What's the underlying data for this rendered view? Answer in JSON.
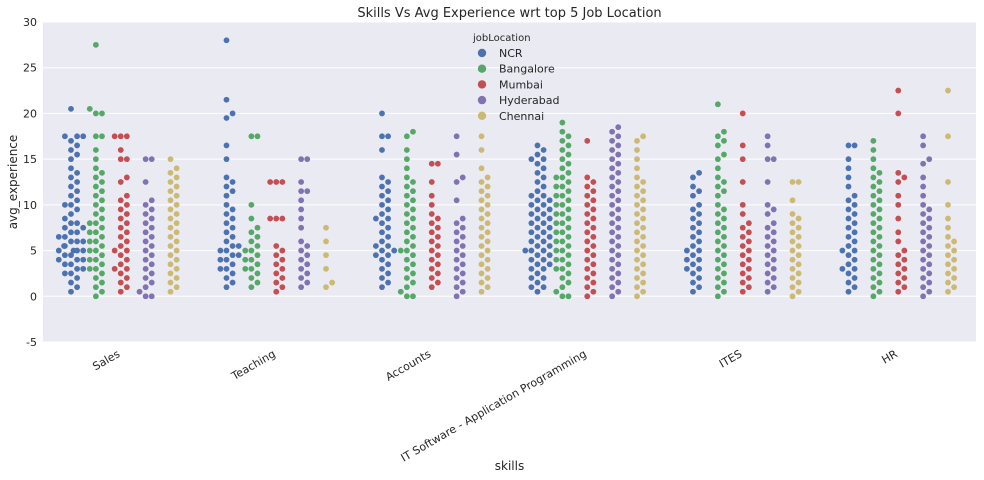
{
  "chart_data": {
    "type": "scatter",
    "subtype": "swarm",
    "title": "Skills Vs Avg Experience wrt top 5 Job Location",
    "xlabel": "skills",
    "ylabel": "avg_experience",
    "ylim": [
      -5,
      30
    ],
    "yticks": [
      -5,
      0,
      5,
      10,
      15,
      20,
      25,
      30
    ],
    "grid": true,
    "categories": [
      "Sales",
      "Teaching",
      "Accounts",
      "IT Software - Application Programming",
      "ITES",
      "HR"
    ],
    "legend": {
      "title": "jobLocation",
      "placement": "top-center",
      "entries": [
        "NCR",
        "Bangalore",
        "Mumbai",
        "Hyderabad",
        "Chennai"
      ]
    },
    "colors": {
      "NCR": "#4c72b0",
      "Bangalore": "#55a868",
      "Mumbai": "#c44e52",
      "Hyderabad": "#8172b2",
      "Chennai": "#ccb974"
    },
    "series": [
      {
        "name": "NCR",
        "color": "#4c72b0",
        "values": [
          [
            0.5,
            1,
            1.5,
            2,
            2.5,
            2.5,
            3,
            3,
            3.5,
            3.5,
            4,
            4,
            4,
            4.5,
            4.5,
            5,
            5,
            5,
            5,
            5.5,
            5.5,
            6,
            6,
            6,
            6.5,
            6.5,
            7,
            7,
            7.5,
            7.5,
            8,
            8,
            8.5,
            9,
            9.5,
            10,
            10,
            10.5,
            11,
            11.5,
            12,
            12.5,
            13,
            13.5,
            14,
            15,
            15.5,
            16,
            16.5,
            17,
            17.5,
            17.5,
            17.5,
            20.5
          ],
          [
            1,
            1.5,
            2,
            2.5,
            3,
            3,
            3.5,
            4,
            4,
            4.5,
            4.5,
            5,
            5,
            5.5,
            5.5,
            6,
            6.5,
            7,
            7.5,
            8,
            8.5,
            9,
            9.5,
            10,
            11,
            11.5,
            12,
            12.5,
            13,
            15,
            16.5,
            19.5,
            20,
            21.5,
            28
          ],
          [
            1,
            1.5,
            2,
            2.5,
            3,
            3.5,
            4,
            4.5,
            4.5,
            5,
            5,
            5.5,
            5.5,
            6,
            6.5,
            7,
            7.5,
            8,
            8.5,
            8.5,
            9,
            9.5,
            10,
            10.5,
            11,
            11.5,
            12,
            12.5,
            13,
            16,
            17.5,
            17.5,
            20
          ],
          [
            0.5,
            1,
            1,
            1.5,
            2,
            2,
            2.5,
            3,
            3,
            3.5,
            3.5,
            4,
            4,
            4.5,
            4.5,
            5,
            5,
            5,
            5.5,
            5.5,
            6,
            6,
            6.5,
            6.5,
            7,
            7,
            7.5,
            7.5,
            8,
            8,
            8.5,
            8.5,
            9,
            9,
            9.5,
            9.5,
            10,
            10,
            10.5,
            10.5,
            11,
            11,
            11.5,
            12,
            12.5,
            13,
            13.5,
            14,
            14.5,
            15,
            15,
            15.5,
            16,
            16.5
          ],
          [
            0.5,
            1,
            1.5,
            2,
            2.5,
            3,
            3,
            3.5,
            4,
            4,
            4.5,
            5,
            5,
            5.5,
            6,
            6.5,
            7,
            7.5,
            8,
            8.5,
            9,
            9.5,
            10,
            11,
            11.5,
            12,
            13,
            13.5
          ],
          [
            0.5,
            1,
            1.5,
            2,
            2.5,
            3,
            3,
            3.5,
            4,
            4.5,
            5,
            5,
            5.5,
            6,
            6.5,
            7,
            7.5,
            8,
            8.5,
            9,
            9.5,
            10,
            10.5,
            11,
            12,
            13,
            14,
            15,
            16.5,
            16.5
          ]
        ]
      },
      {
        "name": "Bangalore",
        "color": "#55a868",
        "values": [
          [
            0,
            0.5,
            1,
            1.5,
            2,
            2.5,
            3,
            3,
            3.5,
            4,
            4,
            4.5,
            5,
            5,
            5.5,
            6,
            6,
            6.5,
            7,
            7,
            7.5,
            8,
            8,
            8.5,
            9,
            9.5,
            10,
            10.5,
            11,
            11.5,
            12,
            12.5,
            13,
            13.5,
            14,
            15,
            16,
            17.5,
            17.5,
            20,
            20,
            20.5,
            27.5
          ],
          [
            1,
            1.5,
            2,
            2.5,
            3,
            3,
            3.5,
            4,
            4,
            4.5,
            5,
            5,
            5.5,
            6,
            6.5,
            7,
            7.5,
            8.5,
            10,
            17.5,
            17.5
          ],
          [
            0,
            0,
            0.5,
            1,
            1.5,
            2,
            2.5,
            3,
            3.5,
            4,
            4.5,
            5,
            5,
            5.5,
            6,
            6.5,
            7,
            7.5,
            8,
            8.5,
            9,
            9.5,
            10,
            10.5,
            11,
            11.5,
            12,
            12.5,
            13,
            14,
            15,
            16,
            17.5,
            18
          ],
          [
            0,
            0,
            0.5,
            1,
            1.5,
            2,
            2.5,
            3,
            3,
            3.5,
            4,
            4,
            4.5,
            5,
            5,
            5.5,
            6,
            6,
            6.5,
            7,
            7,
            7.5,
            8,
            8,
            8.5,
            9,
            9,
            9.5,
            10,
            10,
            10.5,
            11,
            11,
            11.5,
            12,
            12,
            12.5,
            13,
            13,
            13.5,
            14,
            14.5,
            15,
            15.5,
            16,
            16.5,
            17,
            17.5,
            18,
            19
          ],
          [
            0,
            0.5,
            1,
            1.5,
            2,
            2.5,
            3,
            3.5,
            4,
            4.5,
            5,
            5.5,
            6,
            6.5,
            7,
            7.5,
            8,
            8.5,
            9,
            9.5,
            10,
            11,
            11.5,
            12,
            12.5,
            13,
            14,
            15,
            15.5,
            16.5,
            17,
            17.5,
            18,
            21
          ],
          [
            0,
            0.5,
            1,
            1.5,
            2,
            2.5,
            3,
            3.5,
            4,
            4.5,
            5,
            5.5,
            6,
            6.5,
            7,
            7.5,
            8,
            8.5,
            9,
            9.5,
            10,
            10.5,
            11,
            11.5,
            12,
            12.5,
            13,
            13.5,
            14,
            15,
            16,
            17
          ]
        ]
      },
      {
        "name": "Mumbai",
        "color": "#c44e52",
        "values": [
          [
            0.5,
            1,
            1.5,
            2,
            2.5,
            3,
            3,
            3.5,
            4,
            4.5,
            5,
            5,
            5.5,
            6,
            6.5,
            7,
            7.5,
            8,
            8.5,
            9,
            9.5,
            10,
            10.5,
            11,
            12.5,
            13,
            15,
            15,
            16,
            17.5,
            17.5,
            17.5
          ],
          [
            0.5,
            1,
            1.5,
            2,
            2.5,
            3,
            3.5,
            4,
            4.5,
            5,
            5.5,
            8.5,
            8.5,
            8.5,
            12.5,
            12.5,
            12.5
          ],
          [
            1,
            1.5,
            2,
            2.5,
            3,
            3.5,
            4,
            4.5,
            5,
            5.5,
            6,
            6.5,
            7,
            7.5,
            8,
            8.5,
            9,
            10,
            11,
            12.5,
            14.5,
            14.5
          ],
          [
            0,
            0.5,
            1,
            1.5,
            2,
            2.5,
            3,
            3.5,
            4,
            4.5,
            5,
            5.5,
            6,
            6.5,
            7,
            7.5,
            8,
            8.5,
            9,
            9.5,
            10,
            10.5,
            11,
            11.5,
            12,
            12.5,
            13,
            17
          ],
          [
            0.5,
            1,
            1.5,
            2,
            2.5,
            3,
            3.5,
            4,
            4.5,
            5,
            5.5,
            6,
            6.5,
            7,
            7.5,
            8,
            9,
            10,
            12.5,
            15,
            16.5,
            20
          ],
          [
            0.5,
            1,
            1.5,
            2,
            2.5,
            3,
            3.5,
            4,
            4.5,
            5,
            6,
            7,
            8.5,
            10,
            11,
            12.5,
            13,
            13.5,
            20,
            22.5
          ]
        ]
      },
      {
        "name": "Hyderabad",
        "color": "#8172b2",
        "values": [
          [
            0,
            0,
            0.5,
            1,
            1.5,
            2,
            2.5,
            3,
            3.5,
            4,
            4.5,
            5,
            5.5,
            6,
            6.5,
            7,
            7.5,
            8,
            8.5,
            9,
            9.5,
            10,
            10.5,
            12.5,
            15,
            15
          ],
          [
            1,
            1.5,
            2,
            2.5,
            3,
            3.5,
            4,
            4.5,
            5,
            5.5,
            6,
            7.5,
            8.5,
            9.5,
            10.5,
            11.5,
            11.5,
            12.5,
            15,
            15
          ],
          [
            0,
            0.5,
            1,
            1.5,
            2,
            2.5,
            3,
            3.5,
            4,
            4.5,
            5,
            5.5,
            6,
            6.5,
            7,
            7.5,
            8,
            8.5,
            10.5,
            12.5,
            13,
            15.5,
            17.5
          ],
          [
            0,
            0.5,
            1,
            1.5,
            2,
            2.5,
            3,
            3.5,
            4,
            4.5,
            5,
            5.5,
            6,
            6.5,
            7,
            7.5,
            8,
            8.5,
            9,
            9.5,
            10,
            10.5,
            11,
            11.5,
            12,
            12.5,
            13,
            13.5,
            14,
            14.5,
            15,
            15.5,
            16,
            16.5,
            17,
            17.5,
            18,
            18.5
          ],
          [
            0.5,
            1,
            1.5,
            2,
            2.5,
            3,
            3.5,
            4,
            4.5,
            5,
            5.5,
            6,
            6.5,
            7,
            7.5,
            8,
            9,
            9.5,
            10,
            12.5,
            15,
            15,
            16.5,
            17.5
          ],
          [
            0,
            0.5,
            1,
            1.5,
            2,
            2.5,
            3,
            3.5,
            4,
            4.5,
            5,
            5.5,
            6,
            6.5,
            7,
            7.5,
            8,
            8.5,
            9,
            9.5,
            10,
            11,
            12,
            13,
            14.5,
            15,
            16.5,
            17.5
          ]
        ]
      },
      {
        "name": "Chennai",
        "color": "#ccb974",
        "values": [
          [
            0.5,
            1,
            1.5,
            2,
            2.5,
            3,
            3.5,
            4,
            4.5,
            5,
            5.5,
            6,
            6.5,
            7,
            7.5,
            8,
            8.5,
            9,
            9.5,
            10,
            10.5,
            11,
            11.5,
            12,
            12.5,
            13,
            13.5,
            14,
            15
          ],
          [
            1,
            1.5,
            3,
            4.5,
            6,
            7.5
          ],
          [
            0.5,
            1,
            1.5,
            2,
            2.5,
            3,
            3.5,
            4,
            4.5,
            5,
            5.5,
            6,
            6.5,
            7,
            7.5,
            8,
            8.5,
            9,
            9.5,
            10,
            10.5,
            11,
            11.5,
            12,
            12.5,
            13,
            14,
            16,
            17.5
          ],
          [
            0,
            0.5,
            1,
            1.5,
            2,
            2.5,
            3,
            3.5,
            4,
            4.5,
            5,
            5.5,
            6,
            6.5,
            7,
            7.5,
            8,
            8.5,
            9,
            9.5,
            10,
            10.5,
            11,
            11.5,
            12,
            12.5,
            13,
            14,
            15,
            16,
            17,
            17.5
          ],
          [
            0,
            0.5,
            1,
            1.5,
            2,
            2.5,
            3,
            3.5,
            4,
            4.5,
            5,
            5.5,
            6,
            6.5,
            7,
            7.5,
            8,
            8.5,
            9,
            10.5,
            12.5,
            12.5
          ],
          [
            0.5,
            1,
            1.5,
            2,
            2.5,
            3,
            3.5,
            4,
            4.5,
            5,
            5.5,
            6,
            6.5,
            7.5,
            8.5,
            10,
            12.5,
            17.5,
            22.5
          ]
        ]
      }
    ]
  }
}
